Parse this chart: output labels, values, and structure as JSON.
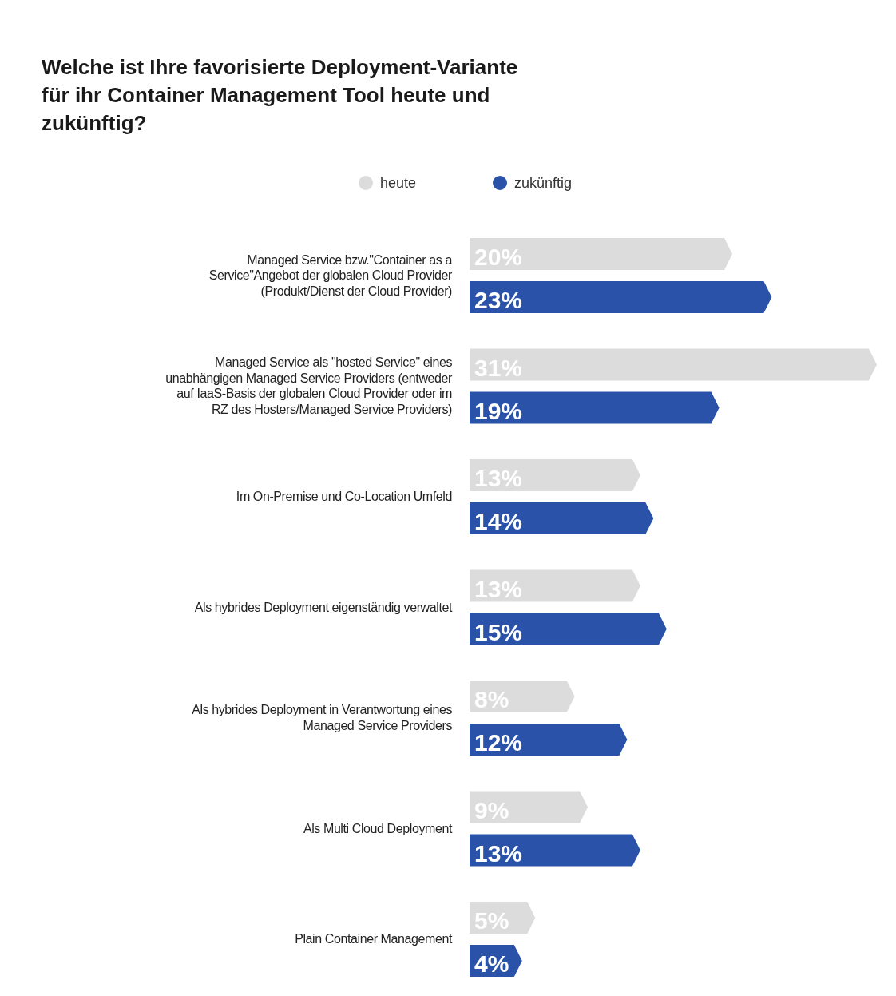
{
  "chart_data": {
    "type": "bar",
    "orientation": "horizontal",
    "title": "Welche ist Ihre favorisierte Deployment-Variante für ihr Container Management Tool heute und zukünftig?",
    "categories": [
      "Managed Service bzw.\"Container as a Service\"Angebot der globalen Cloud Provider (Produkt/Dienst der Cloud Provider)",
      "Managed Service als \"hosted Service\" eines unabhängigen Managed Service Providers (entweder auf IaaS-Basis der globalen Cloud Provider oder im RZ des Hosters/Managed Service Providers)",
      "Im On-Premise und Co-Location Umfeld",
      "Als hybrides Deployment eigenständig verwaltet",
      "Als hybrides Deployment in Verantwortung eines Managed Service Providers",
      "Als Multi Cloud Deployment",
      "Plain Container Management"
    ],
    "series": [
      {
        "name": "heute",
        "color": "#dcdcdc",
        "values": [
          20,
          31,
          13,
          13,
          8,
          9,
          5
        ],
        "value_labels": [
          "20%",
          "31%",
          "13%",
          "13%",
          "8%",
          "9%",
          "5%"
        ]
      },
      {
        "name": "zukünftig",
        "color": "#2a52a8",
        "values": [
          23,
          19,
          14,
          15,
          12,
          13,
          4
        ],
        "value_labels": [
          "23%",
          "19%",
          "14%",
          "15%",
          "12%",
          "13%",
          "4%"
        ]
      }
    ],
    "legend": "top"
  }
}
